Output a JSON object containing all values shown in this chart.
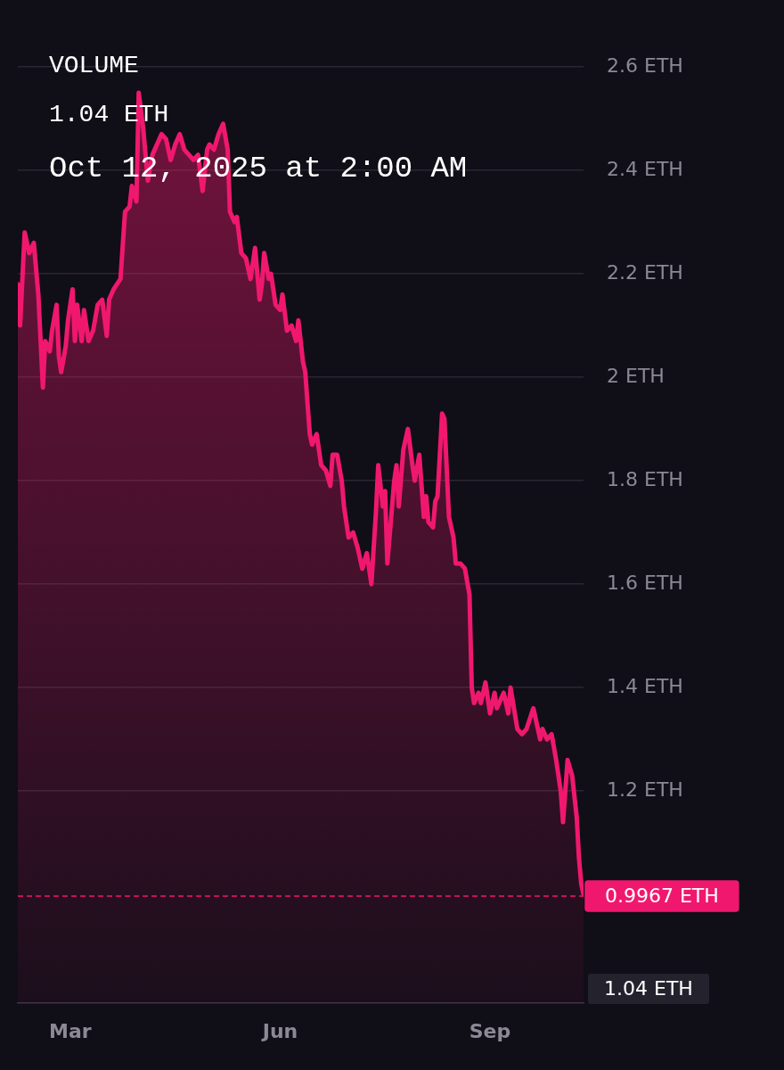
{
  "chart_data": {
    "type": "area",
    "annotations": [
      "VOLUME",
      "1.04 ETH",
      "Oct 12, 2025 at 2:00 AM",
      "1.04 ETH"
    ],
    "x": [
      "2025-02-06",
      "2025-02-07",
      "2025-02-09",
      "2025-02-11",
      "2025-02-13",
      "2025-02-15",
      "2025-02-17",
      "2025-02-18",
      "2025-02-20",
      "2025-02-21",
      "2025-02-23",
      "2025-02-24",
      "2025-02-25",
      "2025-02-27",
      "2025-02-28",
      "2025-03-02",
      "2025-03-03",
      "2025-03-04",
      "2025-03-06",
      "2025-03-07",
      "2025-03-09",
      "2025-03-11",
      "2025-03-13",
      "2025-03-15",
      "2025-03-17",
      "2025-03-18",
      "2025-03-20",
      "2025-03-23",
      "2025-03-25",
      "2025-03-27",
      "2025-03-28",
      "2025-03-30",
      "2025-03-31",
      "2025-04-02",
      "2025-04-04",
      "2025-04-06",
      "2025-04-08",
      "2025-04-10",
      "2025-04-12",
      "2025-04-14",
      "2025-04-16",
      "2025-04-18",
      "2025-04-20",
      "2025-04-22",
      "2025-04-24",
      "2025-04-26",
      "2025-04-28",
      "2025-04-30",
      "2025-05-01",
      "2025-05-03",
      "2025-05-05",
      "2025-05-07",
      "2025-05-09",
      "2025-05-10",
      "2025-05-12",
      "2025-05-13",
      "2025-05-15",
      "2025-05-17",
      "2025-05-19",
      "2025-05-21",
      "2025-05-23",
      "2025-05-24",
      "2025-05-25",
      "2025-05-27",
      "2025-05-28",
      "2025-05-30",
      "2025-06-01",
      "2025-06-02",
      "2025-06-04",
      "2025-06-06",
      "2025-06-08",
      "2025-06-09",
      "2025-06-11",
      "2025-06-12",
      "2025-06-14",
      "2025-06-15",
      "2025-06-17",
      "2025-06-19",
      "2025-06-21",
      "2025-06-23",
      "2025-06-24",
      "2025-06-26",
      "2025-06-28",
      "2025-06-29",
      "2025-07-01",
      "2025-07-03",
      "2025-07-05",
      "2025-07-07",
      "2025-07-09",
      "2025-07-11",
      "2025-07-13",
      "2025-07-14",
      "2025-07-16",
      "2025-07-17",
      "2025-07-18",
      "2025-07-21",
      "2025-07-22",
      "2025-07-23",
      "2025-07-25",
      "2025-07-27",
      "2025-07-29",
      "2025-07-30",
      "2025-08-01",
      "2025-08-03",
      "2025-08-04",
      "2025-08-05",
      "2025-08-07",
      "2025-08-08",
      "2025-08-09",
      "2025-08-11",
      "2025-08-12",
      "2025-08-14",
      "2025-08-16",
      "2025-08-17",
      "2025-08-19",
      "2025-08-21",
      "2025-08-23",
      "2025-08-24",
      "2025-08-25",
      "2025-08-27",
      "2025-08-28",
      "2025-08-30",
      "2025-09-01",
      "2025-09-03",
      "2025-09-04",
      "2025-09-07",
      "2025-09-09",
      "2025-09-10",
      "2025-09-13",
      "2025-09-15",
      "2025-09-17",
      "2025-09-20",
      "2025-09-23",
      "2025-09-24",
      "2025-09-26",
      "2025-09-28",
      "2025-09-30",
      "2025-10-02",
      "2025-10-03",
      "2025-10-05",
      "2025-10-07",
      "2025-10-09",
      "2025-10-10",
      "2025-10-11",
      "2025-10-12"
    ],
    "series": [
      {
        "color": "#f0186e",
        "values": [
          2.18,
          2.1,
          2.28,
          2.24,
          2.26,
          2.16,
          1.98,
          2.07,
          2.05,
          2.09,
          2.14,
          2.04,
          2.01,
          2.06,
          2.11,
          2.17,
          2.07,
          2.14,
          2.07,
          2.13,
          2.07,
          2.09,
          2.14,
          2.15,
          2.08,
          2.15,
          2.17,
          2.19,
          2.32,
          2.33,
          2.37,
          2.34,
          2.55,
          2.48,
          2.38,
          2.43,
          2.45,
          2.47,
          2.46,
          2.42,
          2.45,
          2.47,
          2.44,
          2.43,
          2.42,
          2.43,
          2.36,
          2.44,
          2.45,
          2.44,
          2.47,
          2.49,
          2.44,
          2.32,
          2.3,
          2.31,
          2.24,
          2.23,
          2.19,
          2.25,
          2.15,
          2.18,
          2.24,
          2.19,
          2.2,
          2.14,
          2.13,
          2.16,
          2.09,
          2.1,
          2.07,
          2.11,
          2.03,
          2.01,
          1.89,
          1.87,
          1.89,
          1.83,
          1.82,
          1.79,
          1.85,
          1.85,
          1.8,
          1.75,
          1.69,
          1.7,
          1.67,
          1.63,
          1.66,
          1.6,
          1.74,
          1.83,
          1.75,
          1.78,
          1.64,
          1.8,
          1.83,
          1.75,
          1.86,
          1.9,
          1.83,
          1.8,
          1.85,
          1.73,
          1.77,
          1.72,
          1.71,
          1.76,
          1.77,
          1.93,
          1.92,
          1.73,
          1.69,
          1.64,
          1.64,
          1.63,
          1.58,
          1.4,
          1.37,
          1.39,
          1.37,
          1.41,
          1.35,
          1.39,
          1.36,
          1.39,
          1.35,
          1.4,
          1.32,
          1.31,
          1.32,
          1.36,
          1.3,
          1.32,
          1.3,
          1.31,
          1.26,
          1.2,
          1.14,
          1.26,
          1.23,
          1.15,
          1.07,
          1.02,
          1.0
        ]
      }
    ],
    "xlim": [
      "2025-02-06",
      "2025-10-12"
    ],
    "xticks": [
      {
        "value": "2025-03-01",
        "label": "Mar"
      },
      {
        "value": "2025-06-01",
        "label": "Jun"
      },
      {
        "value": "2025-09-01",
        "label": "Sep"
      }
    ],
    "ylim": [
      0.79,
      2.6
    ],
    "yticks": [
      {
        "value": 1.2,
        "label": "1.2 ETH"
      },
      {
        "value": 1.4,
        "label": "1.4 ETH"
      },
      {
        "value": 1.6,
        "label": "1.6 ETH"
      },
      {
        "value": 1.8,
        "label": "1.8 ETH"
      },
      {
        "value": 2,
        "label": "2 ETH"
      },
      {
        "value": 2.2,
        "label": "2.2 ETH"
      },
      {
        "value": 2.4,
        "label": "2.4 ETH"
      },
      {
        "value": 2.6,
        "label": "2.6 ETH"
      }
    ],
    "grid": "y",
    "ref_lines": [
      {
        "axis": "y",
        "value": 0.9967,
        "label": "0.9967 ETH",
        "color": "#f0186e",
        "line_style": "dashed"
      }
    ]
  }
}
